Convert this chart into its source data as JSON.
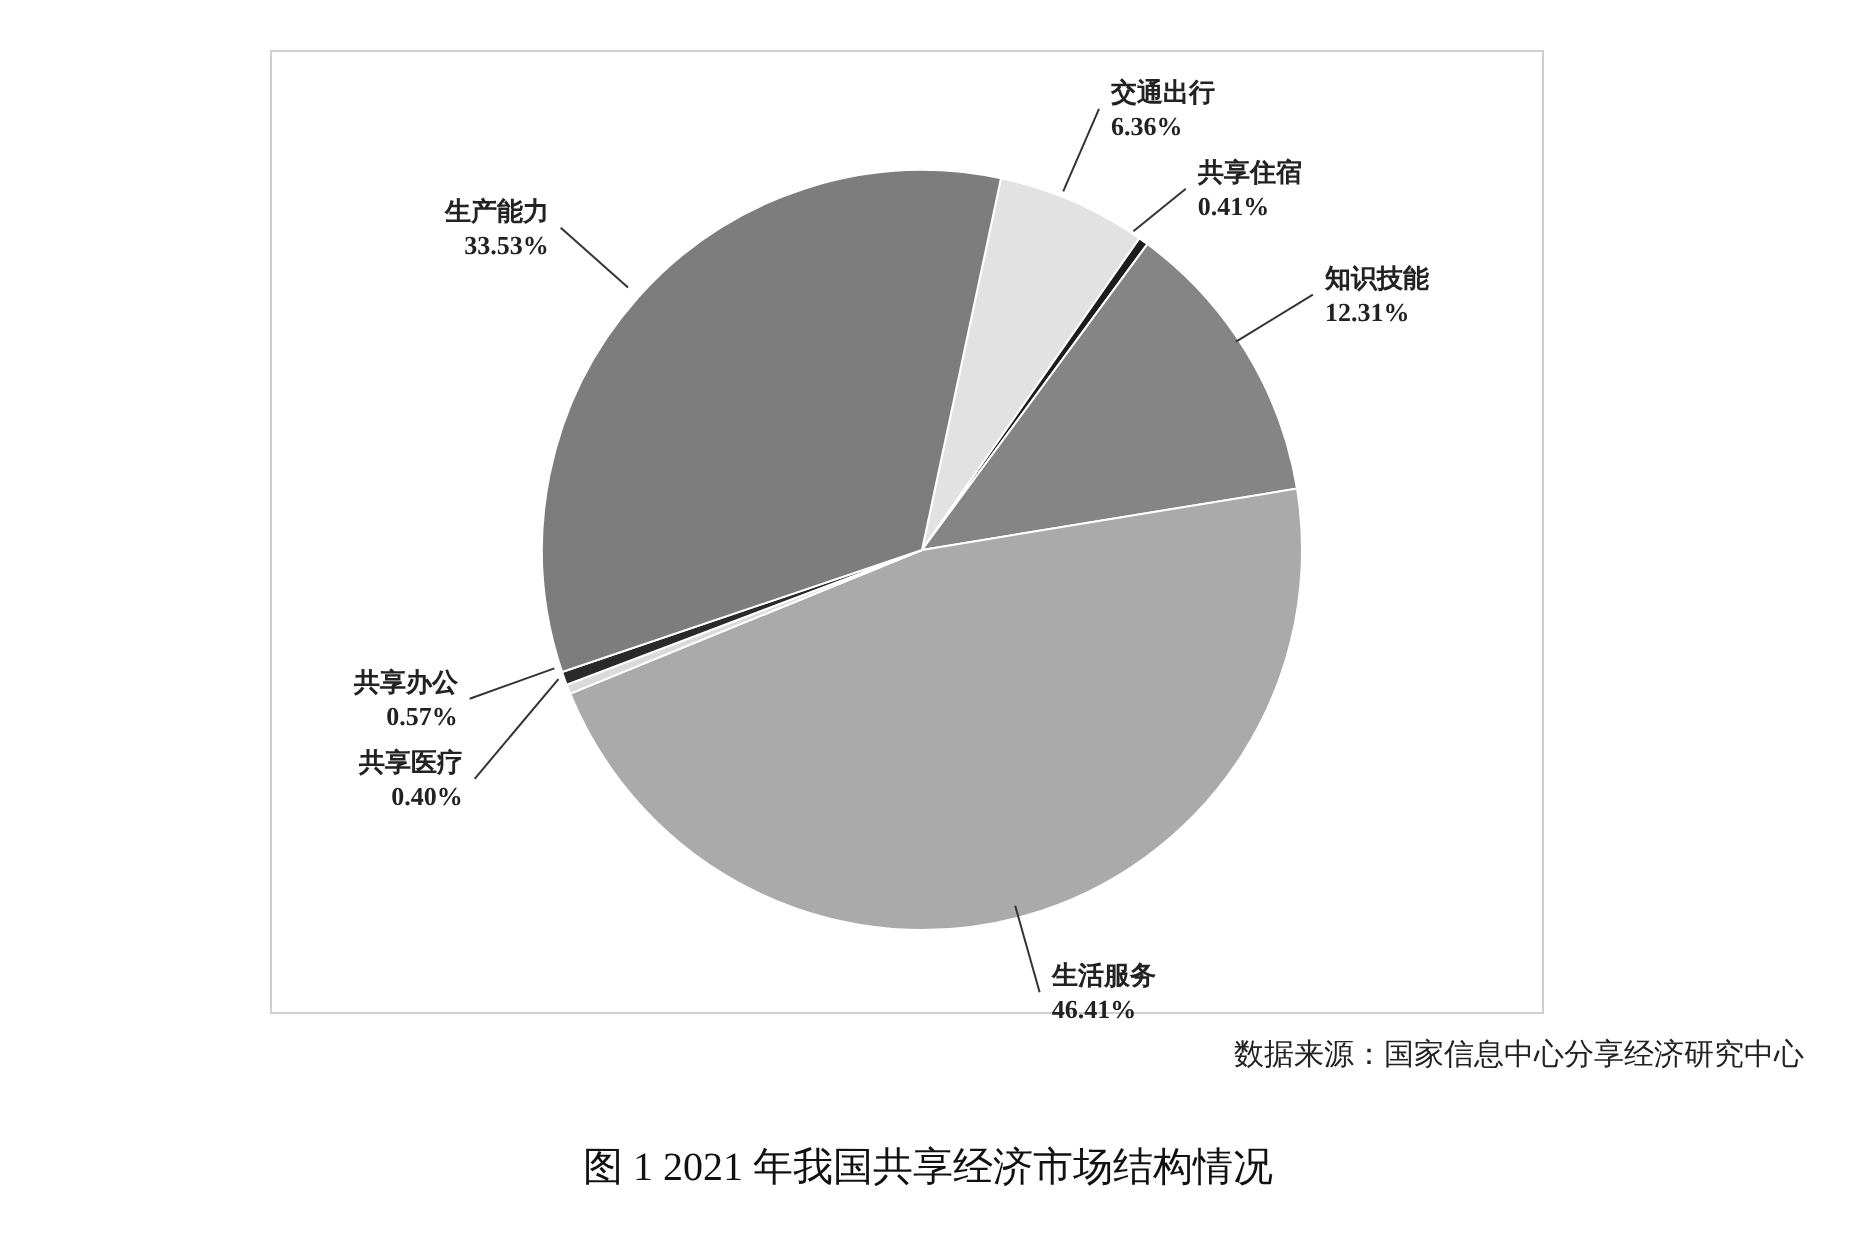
{
  "chart_data": {
    "type": "pie",
    "title": "图 1 2021 年我国共享经济市场结构情况",
    "annotations": [
      "数据来源：国家信息中心分享经济研究中心"
    ],
    "categories": [
      "交通出行",
      "共享住宿",
      "知识技能",
      "生活服务",
      "共享医疗",
      "共享办公",
      "生产能力"
    ],
    "values": [
      6.36,
      0.41,
      12.31,
      46.41,
      0.4,
      0.57,
      33.53
    ],
    "value_labels": [
      "6.36%",
      "0.41%",
      "12.31%",
      "46.41%",
      "0.40%",
      "0.57%",
      "33.53%"
    ],
    "colors": [
      "#e2e2e2",
      "#1c1c1c",
      "#858585",
      "#aaaaaa",
      "#dadada",
      "#2a2a2a",
      "#7d7d7d"
    ]
  }
}
